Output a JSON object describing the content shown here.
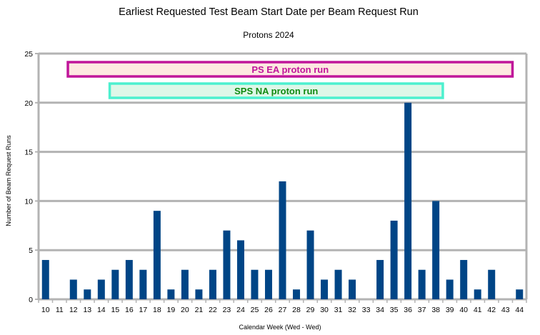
{
  "chart_data": {
    "type": "bar",
    "title": "Earliest Requested Test Beam Start Date per Beam Request Run",
    "subtitle": "Protons 2024",
    "xlabel": "Calendar Week (Wed - Wed)",
    "ylabel": "Number of Beam Request Runs",
    "ylim": [
      0,
      25
    ],
    "yticks": [
      0,
      5,
      10,
      15,
      20,
      25
    ],
    "grid": true,
    "categories": [
      "10",
      "11",
      "12",
      "13",
      "14",
      "15",
      "16",
      "17",
      "18",
      "19",
      "20",
      "21",
      "22",
      "23",
      "24",
      "25",
      "26",
      "27",
      "28",
      "29",
      "30",
      "31",
      "32",
      "33",
      "34",
      "35",
      "36",
      "37",
      "38",
      "39",
      "40",
      "41",
      "42",
      "43",
      "44"
    ],
    "values": [
      4,
      0,
      2,
      1,
      2,
      3,
      4,
      3,
      9,
      1,
      3,
      1,
      3,
      7,
      6,
      3,
      3,
      12,
      1,
      7,
      2,
      3,
      2,
      0,
      4,
      8,
      20,
      3,
      10,
      2,
      4,
      1,
      3,
      0,
      1
    ],
    "bar_color": "#004586",
    "annotations": [
      {
        "label": "PS EA proton run",
        "from_week": "12",
        "to_week": "43",
        "fill": "#fde8e1",
        "border": "#c0159a",
        "text_color": "#c0159a"
      },
      {
        "label": "SPS NA proton run",
        "from_week": "15",
        "to_week": "38",
        "fill": "#def7e8",
        "border": "#4df0cf",
        "text_color": "#118a11"
      }
    ]
  }
}
